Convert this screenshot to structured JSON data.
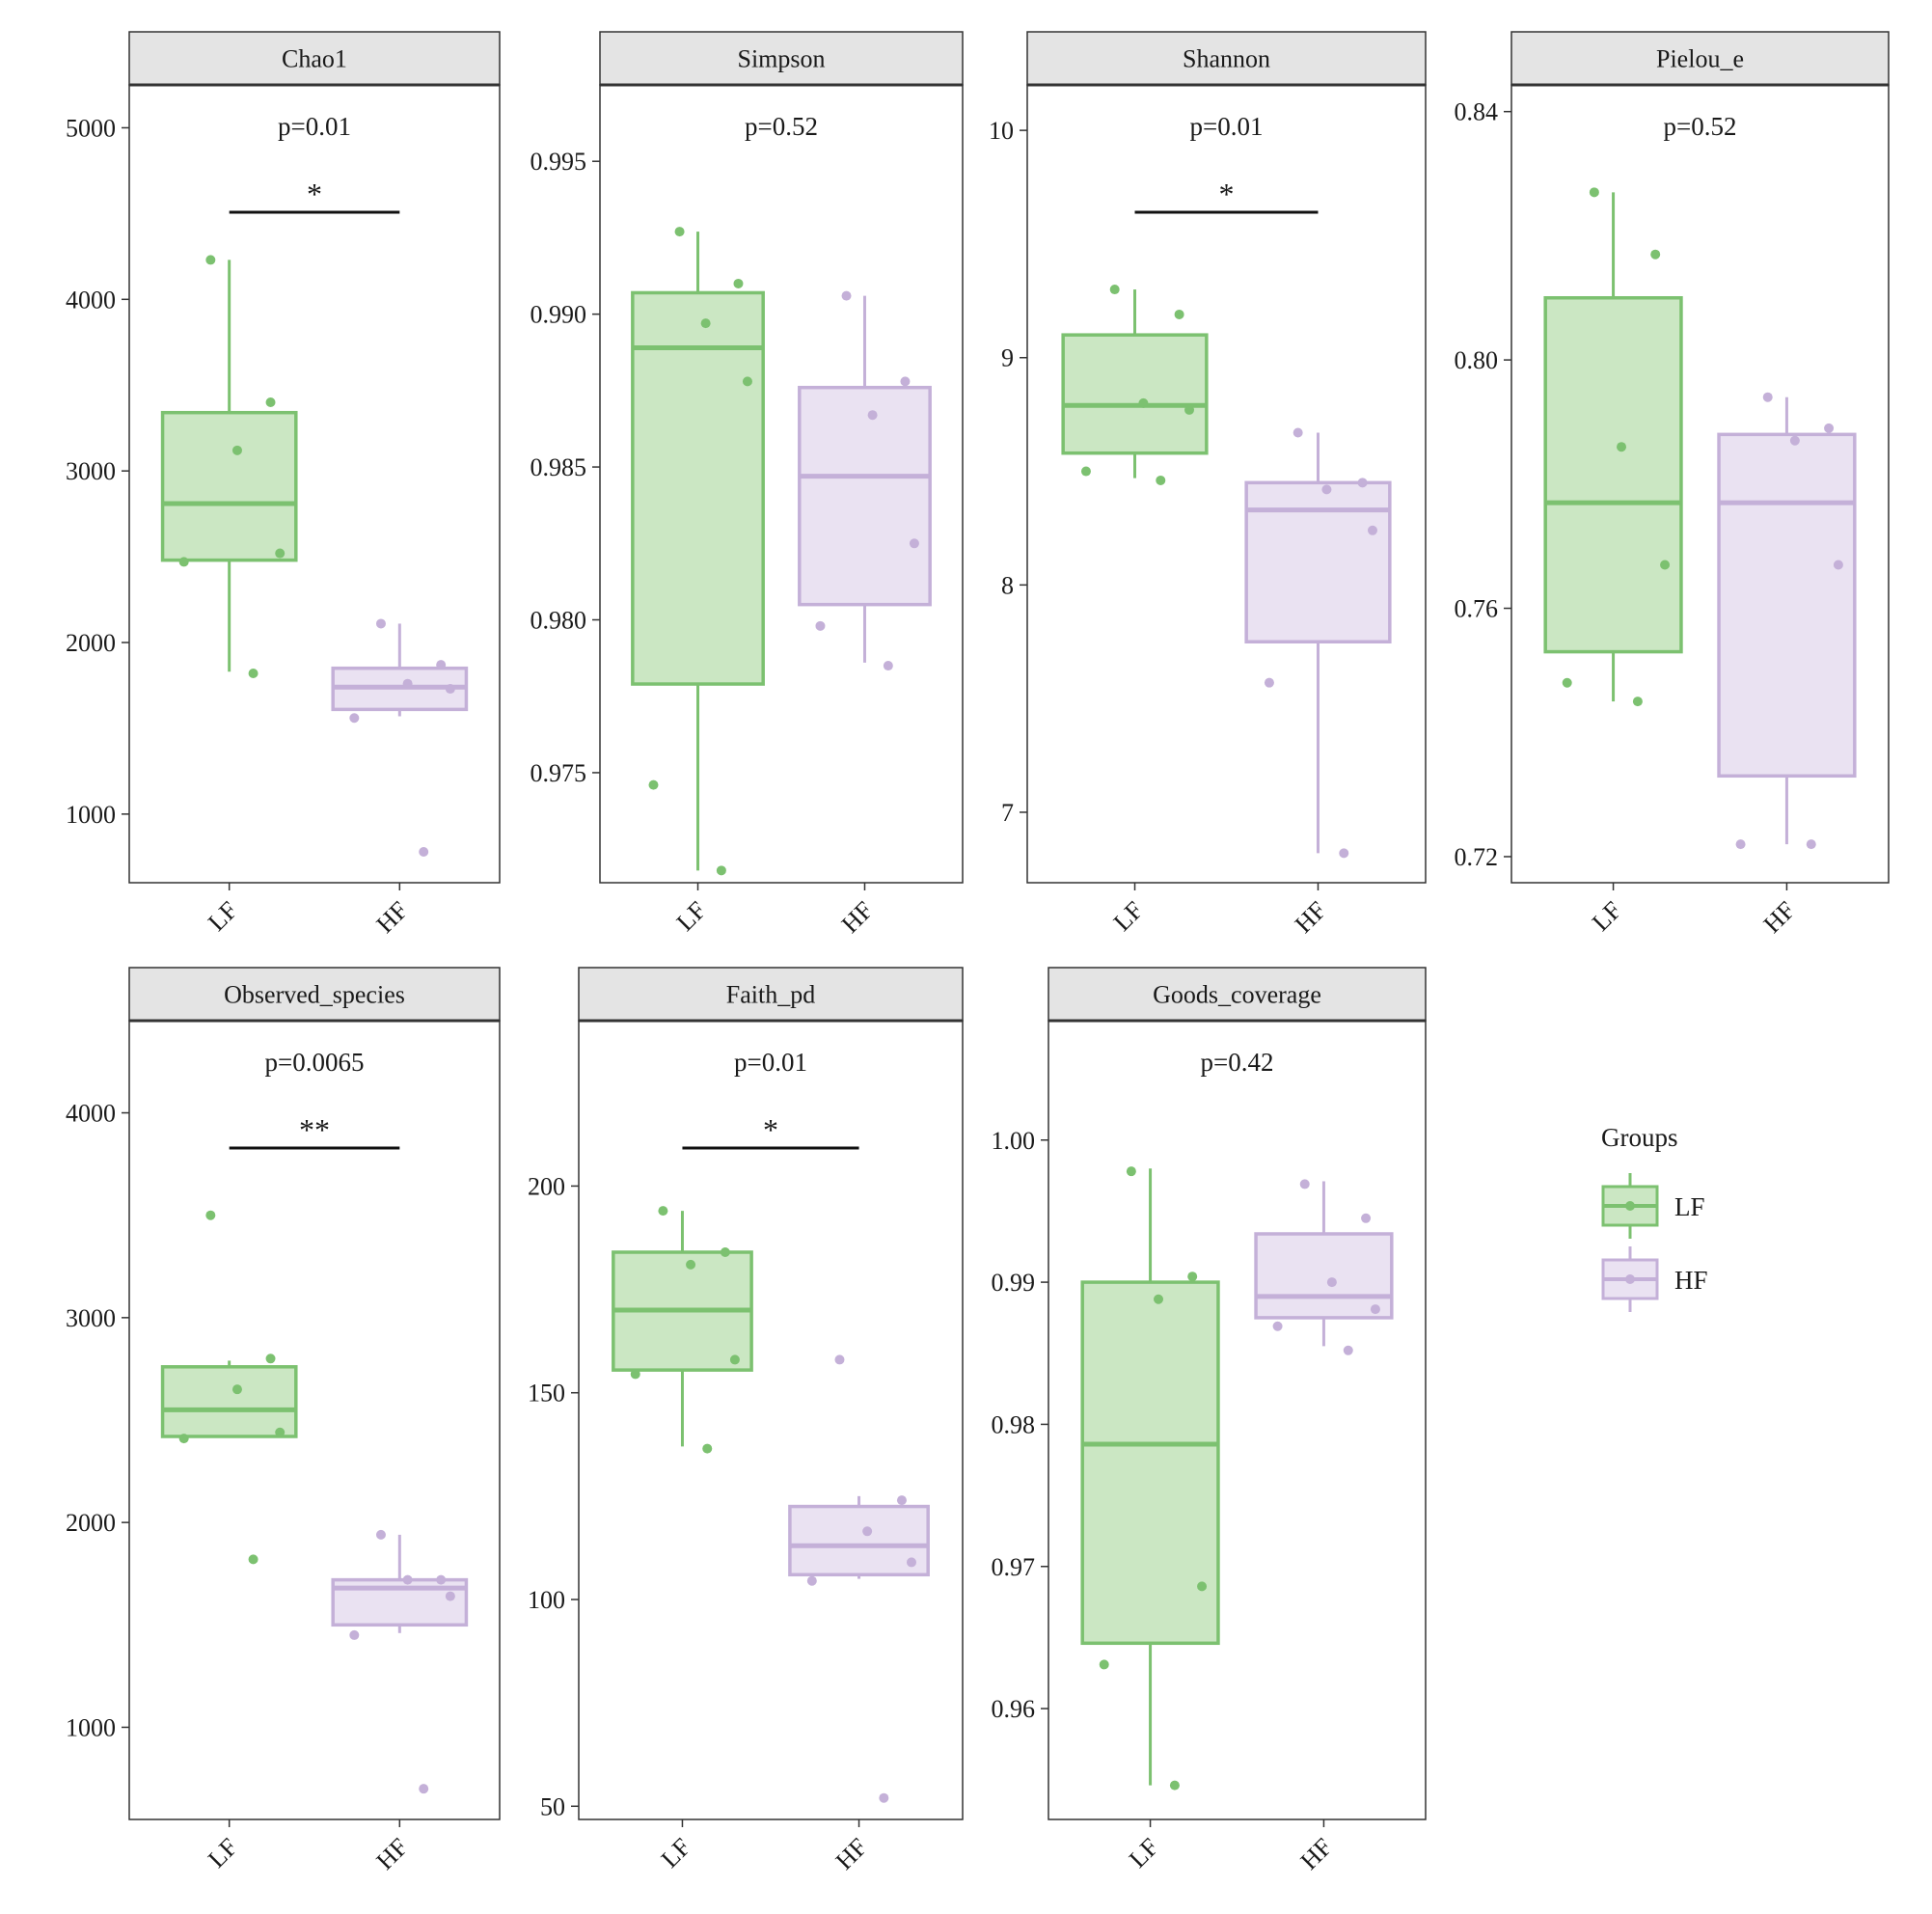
{
  "colors": {
    "LF": "#7cc170",
    "LF_fill": "#cbe7c3",
    "HF": "#c4b0d8",
    "HF_fill": "#eae2f2",
    "strip": "#e4e4e4",
    "axis": "#333333"
  },
  "legend": {
    "title": "Groups",
    "items": [
      {
        "label": "LF",
        "color_key": "LF"
      },
      {
        "label": "HF",
        "color_key": "HF"
      }
    ],
    "placement": "right"
  },
  "chart_data": [
    {
      "type": "box",
      "title": "Chao1",
      "categories": [
        "LF",
        "HF"
      ],
      "ylim": [
        600,
        5250
      ],
      "yticks": [
        1000,
        2000,
        3000,
        4000,
        5000
      ],
      "tick_labels": [
        "1000",
        "2000",
        "3000",
        "4000",
        "5000"
      ],
      "p_label": "p=0.01",
      "significance": "*",
      "boxes": [
        {
          "group": "LF",
          "whisker_low": 1830,
          "q1": 2480,
          "median": 2810,
          "q3": 3340,
          "whisker_high": 4230
        },
        {
          "group": "HF",
          "whisker_low": 1570,
          "q1": 1610,
          "median": 1740,
          "q3": 1850,
          "whisker_high": 2110
        }
      ],
      "points": [
        {
          "group": "LF",
          "values": [
            4230,
            3400,
            3120,
            2520,
            2470,
            1820
          ]
        },
        {
          "group": "HF",
          "values": [
            2110,
            1870,
            1760,
            1730,
            1560,
            780
          ]
        }
      ]
    },
    {
      "type": "box",
      "title": "Simpson",
      "categories": [
        "LF",
        "HF"
      ],
      "ylim": [
        0.9714,
        0.9975
      ],
      "yticks": [
        0.975,
        0.98,
        0.985,
        0.99,
        0.995
      ],
      "tick_labels": [
        "0.975",
        "0.980",
        "0.985",
        "0.990",
        "0.995"
      ],
      "p_label": "p=0.52",
      "significance": "",
      "boxes": [
        {
          "group": "LF",
          "whisker_low": 0.9718,
          "q1": 0.9779,
          "median": 0.9889,
          "q3": 0.9907,
          "whisker_high": 0.9927
        },
        {
          "group": "HF",
          "whisker_low": 0.9786,
          "q1": 0.9805,
          "median": 0.9847,
          "q3": 0.9876,
          "whisker_high": 0.9906
        }
      ],
      "points": [
        {
          "group": "LF",
          "values": [
            0.9927,
            0.991,
            0.9897,
            0.9878,
            0.9746,
            0.9718
          ]
        },
        {
          "group": "HF",
          "values": [
            0.9906,
            0.9878,
            0.9867,
            0.9825,
            0.9798,
            0.9785
          ]
        }
      ]
    },
    {
      "type": "box",
      "title": "Shannon",
      "categories": [
        "LF",
        "HF"
      ],
      "ylim": [
        6.69,
        10.2
      ],
      "yticks": [
        7,
        8,
        9,
        10
      ],
      "tick_labels": [
        "7",
        "8",
        "9",
        "10"
      ],
      "p_label": "p=0.01",
      "significance": "*",
      "boxes": [
        {
          "group": "LF",
          "whisker_low": 8.47,
          "q1": 8.58,
          "median": 8.79,
          "q3": 9.1,
          "whisker_high": 9.3
        },
        {
          "group": "HF",
          "whisker_low": 6.82,
          "q1": 7.75,
          "median": 8.33,
          "q3": 8.45,
          "whisker_high": 8.67
        }
      ],
      "points": [
        {
          "group": "LF",
          "values": [
            9.3,
            9.19,
            8.8,
            8.77,
            8.5,
            8.46
          ]
        },
        {
          "group": "HF",
          "values": [
            8.67,
            8.45,
            8.42,
            8.24,
            7.57,
            6.82
          ]
        }
      ]
    },
    {
      "type": "box",
      "title": "Pielou_e",
      "categories": [
        "LF",
        "HF"
      ],
      "ylim": [
        0.7158,
        0.8443
      ],
      "yticks": [
        0.72,
        0.76,
        0.8,
        0.84
      ],
      "tick_labels": [
        "0.72",
        "0.76",
        "0.80",
        "0.84"
      ],
      "p_label": "p=0.52",
      "significance": "",
      "boxes": [
        {
          "group": "LF",
          "whisker_low": 0.745,
          "q1": 0.753,
          "median": 0.777,
          "q3": 0.81,
          "whisker_high": 0.827
        },
        {
          "group": "HF",
          "whisker_low": 0.722,
          "q1": 0.733,
          "median": 0.777,
          "q3": 0.788,
          "whisker_high": 0.794
        }
      ],
      "points": [
        {
          "group": "LF",
          "values": [
            0.827,
            0.817,
            0.786,
            0.767,
            0.748,
            0.745
          ]
        },
        {
          "group": "HF",
          "values": [
            0.794,
            0.789,
            0.787,
            0.767,
            0.722,
            0.722
          ]
        }
      ]
    },
    {
      "type": "box",
      "title": "Observed_species",
      "categories": [
        "LF",
        "HF"
      ],
      "ylim": [
        550,
        4450
      ],
      "yticks": [
        1000,
        2000,
        3000,
        4000
      ],
      "tick_labels": [
        "1000",
        "2000",
        "3000",
        "4000"
      ],
      "p_label": "p=0.0065",
      "significance": "**",
      "boxes": [
        {
          "group": "LF",
          "whisker_low": 2420,
          "q1": 2420,
          "median": 2550,
          "q3": 2760,
          "whisker_high": 2790
        },
        {
          "group": "HF",
          "whisker_low": 1460,
          "q1": 1500,
          "median": 1680,
          "q3": 1720,
          "whisker_high": 1940
        }
      ],
      "points": [
        {
          "group": "LF",
          "values": [
            3500,
            2800,
            2650,
            2440,
            2410,
            1820
          ]
        },
        {
          "group": "HF",
          "values": [
            1940,
            1720,
            1720,
            1640,
            1450,
            700
          ]
        }
      ]
    },
    {
      "type": "box",
      "title": "Faith_pd",
      "categories": [
        "LF",
        "HF"
      ],
      "ylim": [
        46.8,
        240
      ],
      "yticks": [
        50,
        100,
        150,
        200
      ],
      "tick_labels": [
        "50",
        "100",
        "150",
        "200"
      ],
      "p_label": "p=0.01",
      "significance": "*",
      "boxes": [
        {
          "group": "LF",
          "whisker_low": 137,
          "q1": 155.5,
          "median": 170,
          "q3": 184,
          "whisker_high": 194
        },
        {
          "group": "HF",
          "whisker_low": 105,
          "q1": 106,
          "median": 113,
          "q3": 122.5,
          "whisker_high": 125
        }
      ],
      "points": [
        {
          "group": "LF",
          "values": [
            194,
            184,
            181,
            158,
            154.5,
            136.5
          ]
        },
        {
          "group": "HF",
          "values": [
            158,
            124,
            116.5,
            109,
            104.5,
            52
          ]
        }
      ]
    },
    {
      "type": "box",
      "title": "Goods_coverage",
      "categories": [
        "LF",
        "HF"
      ],
      "ylim": [
        0.9522,
        1.0084
      ],
      "yticks": [
        0.96,
        0.97,
        0.98,
        0.99,
        1.0
      ],
      "tick_labels": [
        "0.96",
        "0.97",
        "0.98",
        "0.99",
        "1.00"
      ],
      "p_label": "p=0.42",
      "significance": "",
      "boxes": [
        {
          "group": "LF",
          "whisker_low": 0.9546,
          "q1": 0.9646,
          "median": 0.9786,
          "q3": 0.99,
          "whisker_high": 0.998
        },
        {
          "group": "HF",
          "whisker_low": 0.9855,
          "q1": 0.9875,
          "median": 0.989,
          "q3": 0.9934,
          "whisker_high": 0.9971
        }
      ],
      "points": [
        {
          "group": "LF",
          "values": [
            0.9978,
            0.9904,
            0.9888,
            0.9686,
            0.9631,
            0.9546
          ]
        },
        {
          "group": "HF",
          "values": [
            0.9969,
            0.9945,
            0.99,
            0.9881,
            0.9869,
            0.9852
          ]
        }
      ]
    }
  ]
}
